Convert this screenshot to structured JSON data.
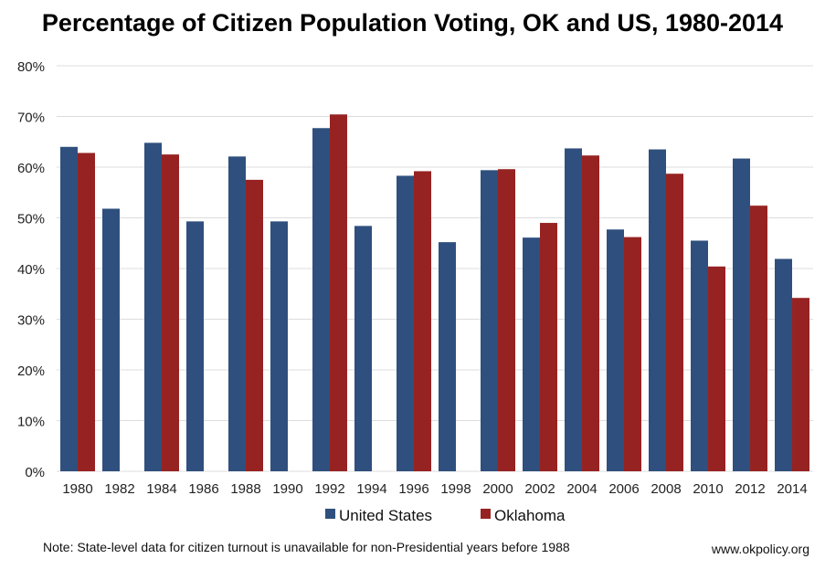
{
  "chart_data": {
    "type": "bar",
    "title": "Percentage of Citizen Population Voting, OK and US, 1980-2014",
    "categories": [
      "1980",
      "1982",
      "1984",
      "1986",
      "1988",
      "1990",
      "1992",
      "1994",
      "1996",
      "1998",
      "2000",
      "2002",
      "2004",
      "2006",
      "2008",
      "2010",
      "2012",
      "2014"
    ],
    "series": [
      {
        "name": "United States",
        "color": "#2f507e",
        "values": [
          64.0,
          51.8,
          64.8,
          49.3,
          62.1,
          49.3,
          67.7,
          48.4,
          58.3,
          45.2,
          59.4,
          46.1,
          63.7,
          47.7,
          63.5,
          45.5,
          61.7,
          41.9
        ]
      },
      {
        "name": "Oklahoma",
        "color": "#962322",
        "values": [
          62.8,
          null,
          62.5,
          null,
          57.5,
          null,
          70.4,
          null,
          59.2,
          null,
          59.6,
          49.0,
          62.3,
          46.2,
          58.7,
          40.4,
          52.4,
          34.2
        ]
      }
    ],
    "ylim": [
      0,
      80
    ],
    "yticks": [
      "0%",
      "10%",
      "20%",
      "30%",
      "40%",
      "50%",
      "60%",
      "70%",
      "80%"
    ],
    "grid": true,
    "legend": "bottom",
    "note": "Note: State-level data for citizen turnout is unavailable for non-Presidential years before 1988",
    "source": "www.okpolicy.org"
  }
}
